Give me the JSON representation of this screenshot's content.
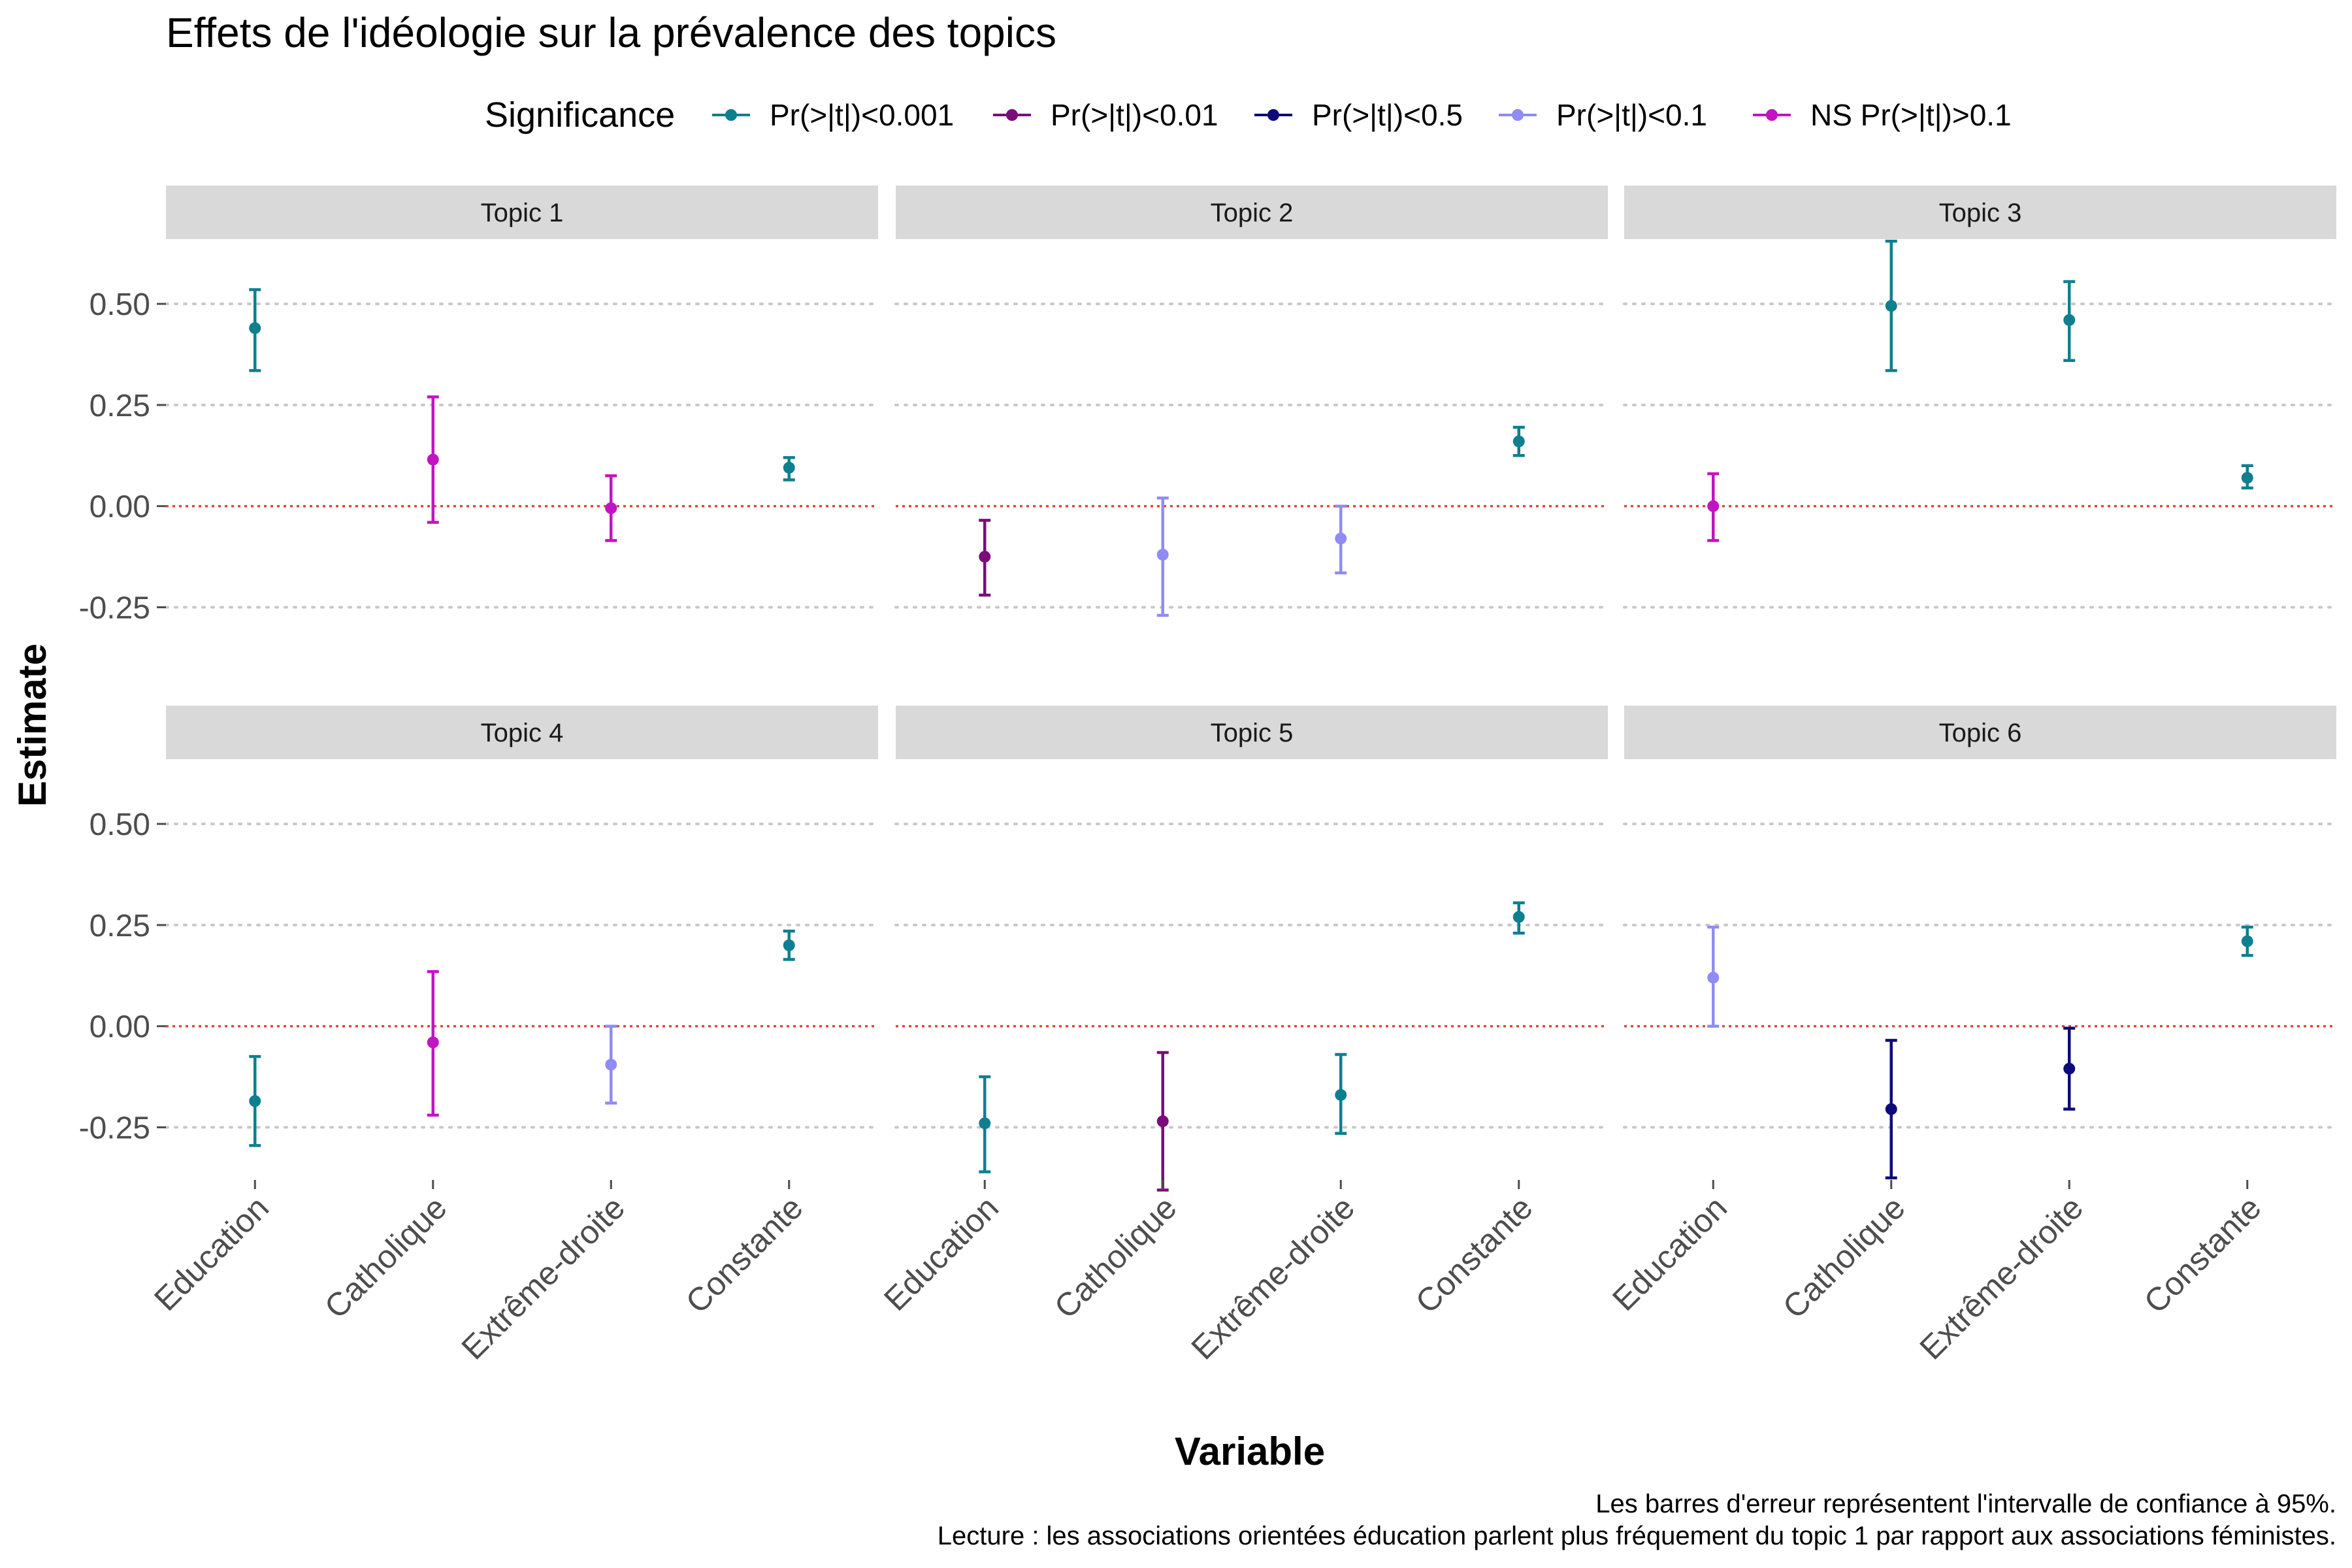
{
  "chart_data": {
    "type": "scatter",
    "subtype": "point-range faceted",
    "title": "Effets de l'idéologie sur la prévalence des topics",
    "xlabel": "Variable",
    "ylabel": "Estimate",
    "categories": [
      "Education",
      "Catholique",
      "Extrême-droite",
      "Constante"
    ],
    "ylim": [
      -0.38,
      0.66
    ],
    "yticks": [
      -0.25,
      0.0,
      0.25,
      0.5
    ],
    "ytick_labels": [
      "-0.25",
      "0.00",
      "0.25",
      "0.50"
    ],
    "reference_line": 0,
    "grid": "horizontal dotted",
    "legend": {
      "title": "Significance",
      "position": "top",
      "entries": [
        {
          "key": "p001",
          "label": "Pr(>|t|)<0.001",
          "color": "#0e7f8f"
        },
        {
          "key": "p01",
          "label": "Pr(>|t|)<0.01",
          "color": "#7a0d7a"
        },
        {
          "key": "p05",
          "label": "Pr(>|t|)<0.5",
          "color": "#0b0b7a"
        },
        {
          "key": "p1",
          "label": "Pr(>|t|)<0.1",
          "color": "#8f8cf5"
        },
        {
          "key": "ns",
          "label": "NS Pr(>|t|)>0.1",
          "color": "#c214c2"
        }
      ]
    },
    "panels": [
      {
        "title": "Topic 1",
        "points": [
          {
            "variable": "Education",
            "estimate": 0.44,
            "low": 0.335,
            "high": 0.535,
            "sig": "p001"
          },
          {
            "variable": "Catholique",
            "estimate": 0.115,
            "low": -0.04,
            "high": 0.27,
            "sig": "ns"
          },
          {
            "variable": "Extrême-droite",
            "estimate": -0.005,
            "low": -0.085,
            "high": 0.075,
            "sig": "ns"
          },
          {
            "variable": "Constante",
            "estimate": 0.095,
            "low": 0.065,
            "high": 0.12,
            "sig": "p001"
          }
        ]
      },
      {
        "title": "Topic 2",
        "points": [
          {
            "variable": "Education",
            "estimate": -0.125,
            "low": -0.22,
            "high": -0.035,
            "sig": "p01"
          },
          {
            "variable": "Catholique",
            "estimate": -0.12,
            "low": -0.27,
            "high": 0.02,
            "sig": "p1"
          },
          {
            "variable": "Extrême-droite",
            "estimate": -0.08,
            "low": -0.165,
            "high": 0.0,
            "sig": "p1"
          },
          {
            "variable": "Constante",
            "estimate": 0.16,
            "low": 0.125,
            "high": 0.195,
            "sig": "p001"
          }
        ]
      },
      {
        "title": "Topic 3",
        "points": [
          {
            "variable": "Education",
            "estimate": 0.0,
            "low": -0.085,
            "high": 0.08,
            "sig": "ns"
          },
          {
            "variable": "Catholique",
            "estimate": 0.495,
            "low": 0.335,
            "high": 0.655,
            "sig": "p001"
          },
          {
            "variable": "Extrême-droite",
            "estimate": 0.46,
            "low": 0.36,
            "high": 0.555,
            "sig": "p001"
          },
          {
            "variable": "Constante",
            "estimate": 0.07,
            "low": 0.045,
            "high": 0.1,
            "sig": "p001"
          }
        ]
      },
      {
        "title": "Topic 4",
        "points": [
          {
            "variable": "Education",
            "estimate": -0.185,
            "low": -0.295,
            "high": -0.075,
            "sig": "p001"
          },
          {
            "variable": "Catholique",
            "estimate": -0.04,
            "low": -0.22,
            "high": 0.135,
            "sig": "ns"
          },
          {
            "variable": "Extrême-droite",
            "estimate": -0.095,
            "low": -0.19,
            "high": 0.0,
            "sig": "p1"
          },
          {
            "variable": "Constante",
            "estimate": 0.2,
            "low": 0.165,
            "high": 0.235,
            "sig": "p001"
          }
        ]
      },
      {
        "title": "Topic 5",
        "points": [
          {
            "variable": "Education",
            "estimate": -0.24,
            "low": -0.36,
            "high": -0.125,
            "sig": "p001"
          },
          {
            "variable": "Catholique",
            "estimate": -0.235,
            "low": -0.405,
            "high": -0.065,
            "sig": "p01"
          },
          {
            "variable": "Extrême-droite",
            "estimate": -0.17,
            "low": -0.265,
            "high": -0.07,
            "sig": "p001"
          },
          {
            "variable": "Constante",
            "estimate": 0.27,
            "low": 0.23,
            "high": 0.305,
            "sig": "p001"
          }
        ]
      },
      {
        "title": "Topic 6",
        "points": [
          {
            "variable": "Education",
            "estimate": 0.12,
            "low": 0.0,
            "high": 0.245,
            "sig": "p1"
          },
          {
            "variable": "Catholique",
            "estimate": -0.205,
            "low": -0.375,
            "high": -0.035,
            "sig": "p05"
          },
          {
            "variable": "Extrême-droite",
            "estimate": -0.105,
            "low": -0.205,
            "high": -0.005,
            "sig": "p05"
          },
          {
            "variable": "Constante",
            "estimate": 0.21,
            "low": 0.175,
            "high": 0.245,
            "sig": "p001"
          }
        ]
      }
    ],
    "caption": [
      "Les barres d'erreur représentent l'intervalle de confiance à 95%.",
      "Lecture : les associations orientées éducation parlent plus fréquement du topic 1 par rapport aux associations féministes."
    ]
  }
}
